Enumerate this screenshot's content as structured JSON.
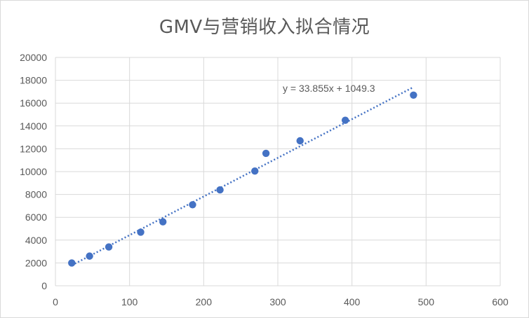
{
  "chart_data": {
    "type": "scatter",
    "title": "GMV与营销收入拟合情况",
    "xlabel": "",
    "ylabel": "",
    "xlim": [
      0,
      600
    ],
    "ylim": [
      0,
      20000
    ],
    "xticks": [
      0,
      100,
      200,
      300,
      400,
      500,
      600
    ],
    "yticks": [
      0,
      2000,
      4000,
      6000,
      8000,
      10000,
      12000,
      14000,
      16000,
      18000,
      20000
    ],
    "grid": true,
    "series": [
      {
        "points": [
          {
            "x": 22,
            "y": 2000
          },
          {
            "x": 46,
            "y": 2600
          },
          {
            "x": 72,
            "y": 3400
          },
          {
            "x": 115,
            "y": 4700
          },
          {
            "x": 145,
            "y": 5600
          },
          {
            "x": 185,
            "y": 7100
          },
          {
            "x": 222,
            "y": 8400
          },
          {
            "x": 269,
            "y": 10050
          },
          {
            "x": 284,
            "y": 11600
          },
          {
            "x": 330,
            "y": 12700
          },
          {
            "x": 391,
            "y": 14500
          },
          {
            "x": 483,
            "y": 16700
          }
        ],
        "color": "#4472c4"
      }
    ],
    "trendline": {
      "slope": 33.855,
      "intercept": 1049.3,
      "x_range": [
        22,
        483
      ],
      "equation_label": "y = 33.855x + 1049.3",
      "color": "#4472c4",
      "style": "dotted"
    }
  }
}
